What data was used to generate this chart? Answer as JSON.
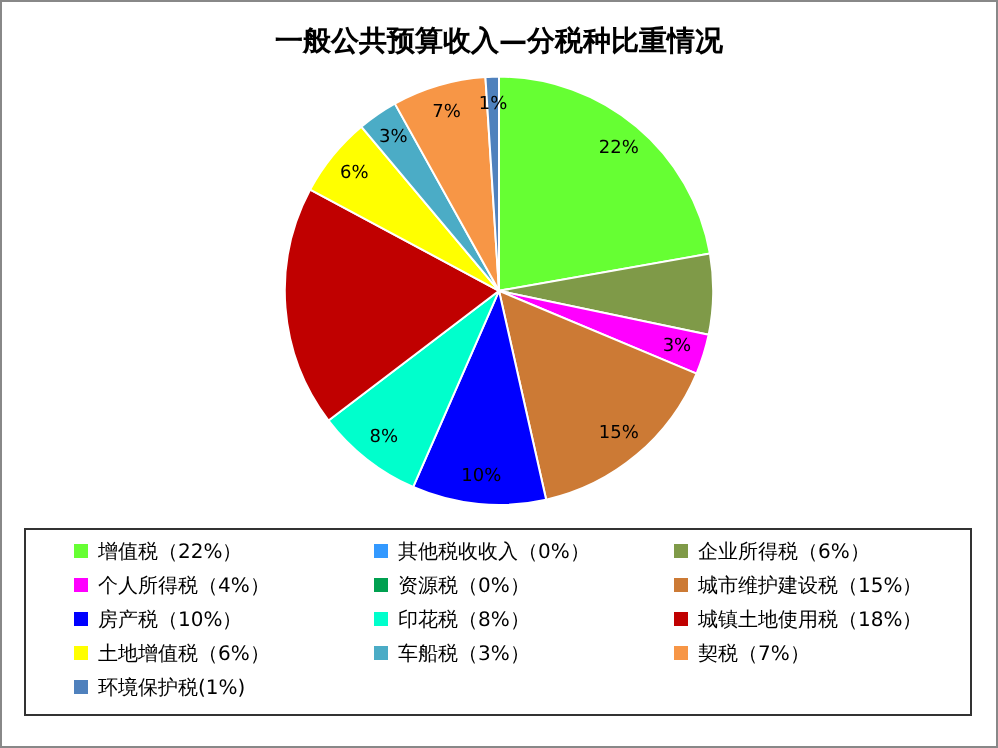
{
  "chart_data": {
    "type": "pie",
    "title": "一般公共预算收入—分税种比重情况",
    "categories": [
      "增值税（22%）",
      "其他税收收入（0%）",
      "企业所得税（6%）",
      "个人所得税（4%）",
      "资源税（0%）",
      "城市维护建设税（15%）",
      "房产税（10%）",
      "印花税（8%）",
      "城镇土地使用税（18%）",
      "土地增值税（6%）",
      "车船税（3%）",
      "契税（7%）",
      "环境保护税(1%)"
    ],
    "values": [
      22,
      0,
      6,
      3,
      0,
      15,
      10,
      8,
      18,
      6,
      3,
      7,
      1
    ],
    "value_labels": [
      "22%",
      null,
      null,
      "3%",
      null,
      "15%",
      "10%",
      "8%",
      null,
      "6%",
      "3%",
      "7%",
      "1%"
    ],
    "colors": [
      "#66ff33",
      "#3399ff",
      "#7f9a48",
      "#ff00ff",
      "#00a050",
      "#cc7a35",
      "#0000ff",
      "#00ffcc",
      "#c00000",
      "#ffff00",
      "#4bacc6",
      "#f79646",
      "#4f81bd"
    ],
    "legend": "bottom"
  }
}
